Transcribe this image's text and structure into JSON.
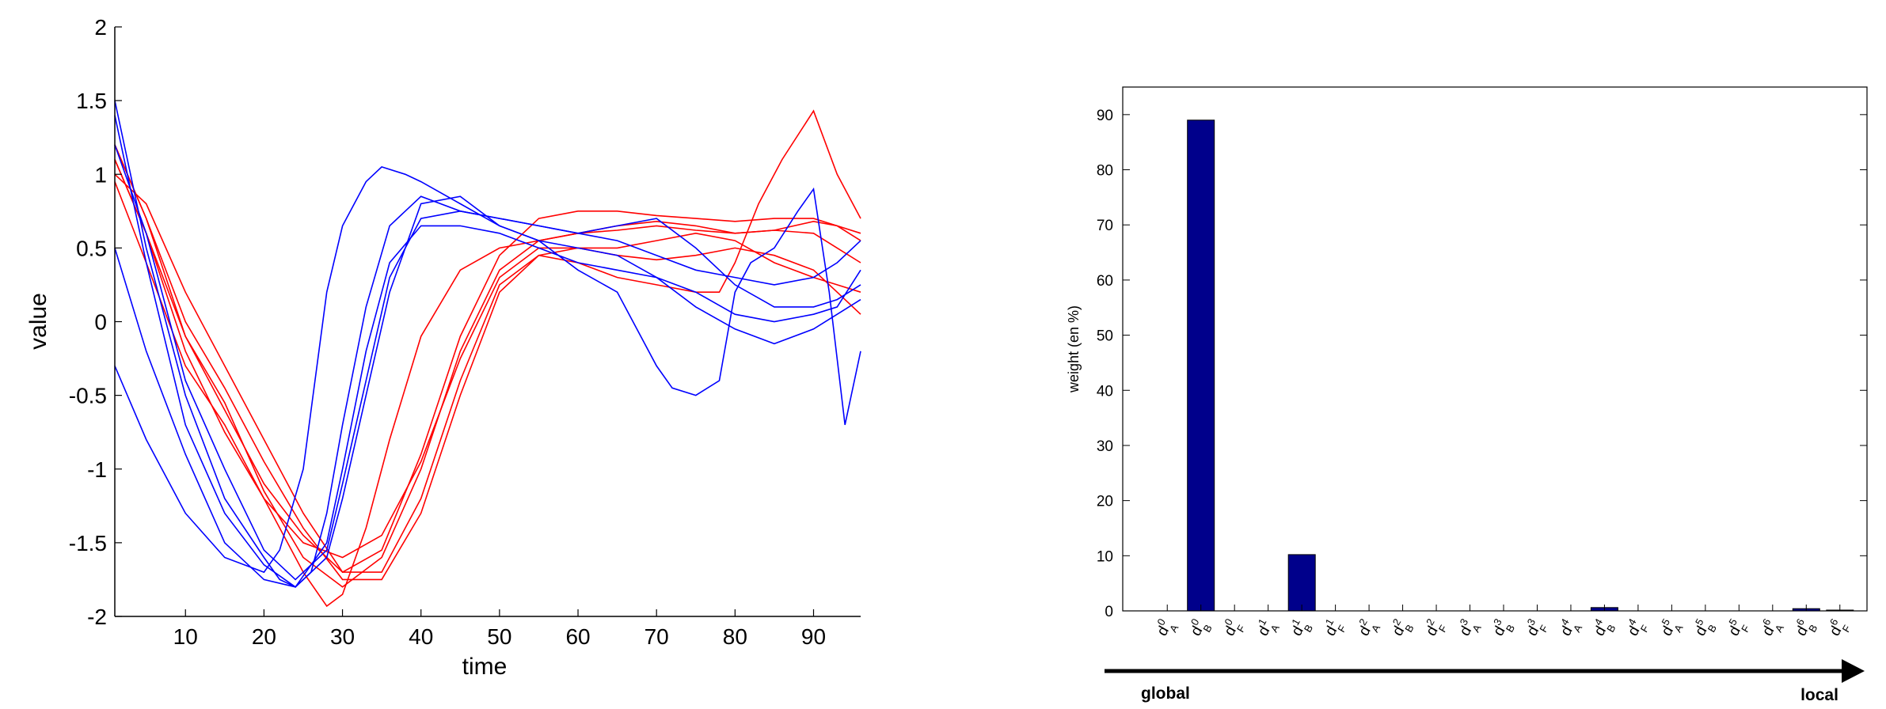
{
  "chart_data": [
    {
      "type": "line",
      "xlabel": "time",
      "ylabel": "value",
      "xlim": [
        1,
        96
      ],
      "ylim": [
        -2,
        2
      ],
      "xticks": [
        "10",
        "20",
        "30",
        "40",
        "50",
        "60",
        "70",
        "80",
        "90"
      ],
      "yticks": [
        "-2",
        "-1.5",
        "-1",
        "-0.5",
        "0",
        "0.5",
        "1",
        "1.5",
        "2"
      ],
      "grid": false,
      "series": [
        {
          "color": "#ff0000",
          "x": [
            1,
            5,
            10,
            15,
            20,
            25,
            28,
            30,
            33,
            36,
            40,
            45,
            50,
            55,
            60,
            65,
            70,
            75,
            80,
            85,
            90,
            93,
            96
          ],
          "y": [
            1.1,
            0.6,
            -0.2,
            -0.75,
            -1.2,
            -1.7,
            -1.93,
            -1.85,
            -1.4,
            -0.8,
            -0.1,
            0.35,
            0.5,
            0.55,
            0.6,
            0.62,
            0.65,
            0.62,
            0.6,
            0.62,
            0.6,
            0.5,
            0.4
          ]
        },
        {
          "color": "#ff0000",
          "x": [
            1,
            5,
            10,
            15,
            20,
            25,
            30,
            35,
            40,
            45,
            50,
            55,
            60,
            65,
            70,
            75,
            80,
            85,
            90,
            93,
            96
          ],
          "y": [
            1.2,
            0.7,
            -0.1,
            -0.55,
            -1.15,
            -1.6,
            -1.8,
            -1.6,
            -1.0,
            -0.2,
            0.35,
            0.55,
            0.6,
            0.65,
            0.68,
            0.65,
            0.6,
            0.62,
            0.68,
            0.65,
            0.55
          ]
        },
        {
          "color": "#ff0000",
          "x": [
            1,
            5,
            10,
            15,
            20,
            25,
            30,
            35,
            40,
            45,
            50,
            55,
            60,
            65,
            70,
            75,
            80,
            85,
            90,
            93,
            96
          ],
          "y": [
            1.0,
            0.8,
            0.2,
            -0.3,
            -0.8,
            -1.3,
            -1.7,
            -1.55,
            -0.9,
            -0.1,
            0.45,
            0.7,
            0.75,
            0.75,
            0.72,
            0.7,
            0.68,
            0.7,
            0.7,
            0.65,
            0.6
          ]
        },
        {
          "color": "#ff0000",
          "x": [
            1,
            5,
            10,
            15,
            20,
            25,
            30,
            35,
            40,
            45,
            50,
            55,
            60,
            65,
            70,
            75,
            80,
            85,
            90,
            93,
            96
          ],
          "y": [
            1.2,
            0.7,
            0.0,
            -0.45,
            -0.95,
            -1.4,
            -1.75,
            -1.75,
            -1.3,
            -0.5,
            0.2,
            0.45,
            0.5,
            0.5,
            0.55,
            0.6,
            0.55,
            0.4,
            0.3,
            0.25,
            0.2
          ]
        },
        {
          "color": "#ff0000",
          "x": [
            1,
            5,
            10,
            15,
            20,
            25,
            30,
            35,
            40,
            45,
            50,
            55,
            60,
            65,
            70,
            75,
            78,
            80,
            83,
            86,
            90,
            93,
            96
          ],
          "y": [
            1.1,
            0.6,
            -0.1,
            -0.6,
            -1.1,
            -1.45,
            -1.7,
            -1.7,
            -1.2,
            -0.4,
            0.25,
            0.45,
            0.4,
            0.3,
            0.25,
            0.2,
            0.2,
            0.4,
            0.8,
            1.1,
            1.43,
            1.0,
            0.7
          ]
        },
        {
          "color": "#ff0000",
          "x": [
            1,
            5,
            10,
            15,
            20,
            25,
            30,
            35,
            40,
            45,
            50,
            55,
            60,
            65,
            70,
            75,
            80,
            85,
            90,
            93,
            96
          ],
          "y": [
            0.95,
            0.4,
            -0.3,
            -0.7,
            -1.2,
            -1.5,
            -1.6,
            -1.45,
            -0.95,
            -0.25,
            0.3,
            0.5,
            0.5,
            0.45,
            0.42,
            0.45,
            0.5,
            0.45,
            0.35,
            0.2,
            0.05
          ]
        },
        {
          "color": "#0000ff",
          "x": [
            1,
            5,
            10,
            15,
            20,
            22,
            24,
            26,
            28,
            30,
            33,
            36,
            40,
            45,
            50,
            55,
            60,
            65,
            70,
            75,
            80,
            85,
            90,
            93,
            96
          ],
          "y": [
            1.5,
            0.5,
            -0.5,
            -1.2,
            -1.6,
            -1.75,
            -1.8,
            -1.7,
            -1.3,
            -0.7,
            0.1,
            0.65,
            0.85,
            0.75,
            0.7,
            0.65,
            0.6,
            0.55,
            0.45,
            0.35,
            0.3,
            0.25,
            0.3,
            0.4,
            0.55
          ]
        },
        {
          "color": "#0000ff",
          "x": [
            1,
            5,
            10,
            15,
            20,
            24,
            28,
            30,
            33,
            36,
            40,
            45,
            50,
            55,
            60,
            65,
            70,
            75,
            80,
            85,
            90,
            93,
            96
          ],
          "y": [
            1.2,
            0.6,
            -0.4,
            -1.0,
            -1.55,
            -1.75,
            -1.55,
            -1.1,
            -0.4,
            0.3,
            0.7,
            0.75,
            0.7,
            0.65,
            0.6,
            0.65,
            0.7,
            0.5,
            0.25,
            0.1,
            0.1,
            0.15,
            0.25
          ]
        },
        {
          "color": "#0000ff",
          "x": [
            1,
            5,
            10,
            15,
            20,
            24,
            28,
            30,
            33,
            36,
            40,
            45,
            50,
            55,
            60,
            65,
            70,
            75,
            80,
            85,
            90,
            93,
            96
          ],
          "y": [
            0.5,
            -0.2,
            -0.9,
            -1.5,
            -1.75,
            -1.8,
            -1.5,
            -1.0,
            -0.2,
            0.4,
            0.65,
            0.65,
            0.6,
            0.5,
            0.4,
            0.35,
            0.3,
            0.2,
            0.05,
            0.0,
            0.05,
            0.1,
            0.35
          ]
        },
        {
          "color": "#0000ff",
          "x": [
            1,
            5,
            10,
            15,
            20,
            22,
            25,
            28,
            30,
            33,
            35,
            38,
            40,
            45,
            50,
            55,
            60,
            65,
            70,
            72,
            75,
            78,
            80,
            82,
            85,
            88,
            90,
            92,
            94,
            96
          ],
          "y": [
            -0.3,
            -0.8,
            -1.3,
            -1.6,
            -1.7,
            -1.55,
            -1.0,
            0.2,
            0.65,
            0.95,
            1.05,
            1.0,
            0.95,
            0.8,
            0.65,
            0.55,
            0.35,
            0.2,
            -0.3,
            -0.45,
            -0.5,
            -0.4,
            0.2,
            0.4,
            0.5,
            0.75,
            0.9,
            0.2,
            -0.7,
            -0.2
          ]
        },
        {
          "color": "#0000ff",
          "x": [
            1,
            5,
            10,
            15,
            20,
            24,
            28,
            30,
            33,
            36,
            40,
            45,
            50,
            55,
            60,
            65,
            70,
            75,
            80,
            85,
            90,
            93,
            96
          ],
          "y": [
            1.4,
            0.4,
            -0.7,
            -1.3,
            -1.65,
            -1.8,
            -1.6,
            -1.2,
            -0.5,
            0.2,
            0.8,
            0.85,
            0.65,
            0.55,
            0.5,
            0.45,
            0.3,
            0.1,
            -0.05,
            -0.15,
            -0.05,
            0.05,
            0.15
          ]
        }
      ]
    },
    {
      "type": "bar",
      "ylabel": "weight (en %)",
      "ylim": [
        0,
        95
      ],
      "yticks": [
        "0",
        "10",
        "20",
        "30",
        "40",
        "50",
        "60",
        "70",
        "80",
        "90"
      ],
      "grid": false,
      "bar_color": "#00008b",
      "categories": [
        [
          "d",
          "0",
          "A"
        ],
        [
          "d",
          "0",
          "B"
        ],
        [
          "d",
          "0",
          "F"
        ],
        [
          "d",
          "1",
          "A"
        ],
        [
          "d",
          "1",
          "B"
        ],
        [
          "d",
          "1",
          "F"
        ],
        [
          "d",
          "2",
          "A"
        ],
        [
          "d",
          "2",
          "B"
        ],
        [
          "d",
          "2",
          "F"
        ],
        [
          "d",
          "3",
          "A"
        ],
        [
          "d",
          "3",
          "B"
        ],
        [
          "d",
          "3",
          "F"
        ],
        [
          "d",
          "4",
          "A"
        ],
        [
          "d",
          "4",
          "B"
        ],
        [
          "d",
          "4",
          "F"
        ],
        [
          "d",
          "5",
          "A"
        ],
        [
          "d",
          "5",
          "B"
        ],
        [
          "d",
          "5",
          "F"
        ],
        [
          "d",
          "6",
          "A"
        ],
        [
          "d",
          "6",
          "B"
        ],
        [
          "d",
          "6",
          "F"
        ]
      ],
      "values": [
        0,
        89,
        0,
        0,
        10.2,
        0,
        0,
        0,
        0,
        0,
        0,
        0,
        0,
        0.6,
        0,
        0,
        0,
        0,
        0,
        0.4,
        0.15
      ],
      "arrow": {
        "left_label": "global",
        "right_label": "local"
      }
    }
  ]
}
